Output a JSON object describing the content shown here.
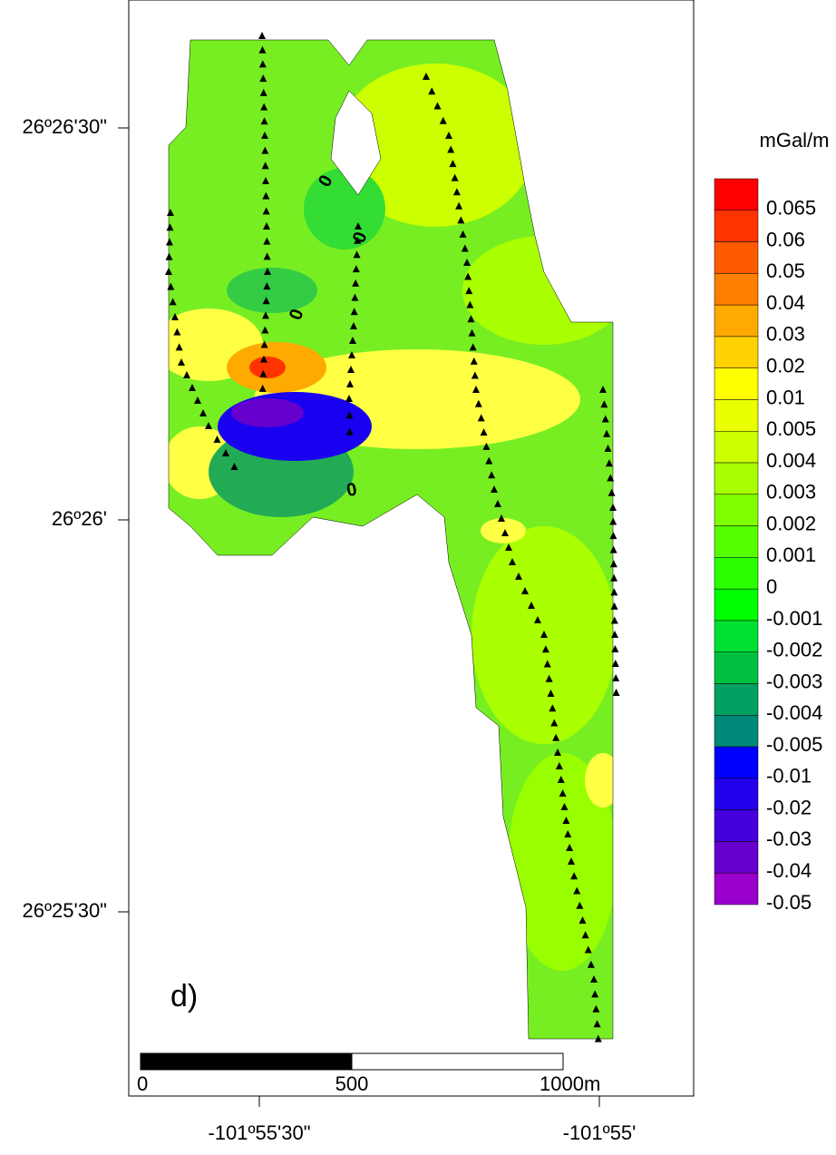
{
  "panel_label": "d)",
  "lat_ticks": [
    "26º26'30\"",
    "26º26'",
    "26º25'30\""
  ],
  "lon_ticks": [
    "-101º55'30\"",
    "-101º55'"
  ],
  "colorbar": {
    "title": "mGal/m",
    "levels": [
      0.065,
      0.06,
      0.05,
      0.04,
      0.03,
      0.02,
      0.01,
      0.005,
      0.004,
      0.003,
      0.002,
      0.001,
      0,
      -0.001,
      -0.002,
      -0.003,
      -0.004,
      -0.005,
      -0.01,
      -0.02,
      -0.03,
      -0.04,
      -0.05
    ],
    "colors": [
      "#ff0000",
      "#ff3300",
      "#ff5a00",
      "#ff7f00",
      "#ffaa00",
      "#ffd200",
      "#ffff00",
      "#eaff00",
      "#ccff00",
      "#aaff00",
      "#80ff00",
      "#55ff00",
      "#2aff00",
      "#00ff00",
      "#00e030",
      "#00c040",
      "#00a060",
      "#008878",
      "#0000ff",
      "#2200ee",
      "#4400dd",
      "#6600cc",
      "#9900cc"
    ]
  },
  "scale_bar": [
    0,
    500,
    {
      "value": 1000,
      "label": "1000m"
    }
  ],
  "contour_labels": [
    "0",
    "0",
    "0",
    "0"
  ]
}
